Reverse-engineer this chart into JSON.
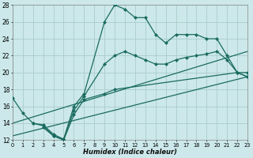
{
  "bg_color": "#cce8ea",
  "grid_color": "#aacccc",
  "line_color": "#1a6b60",
  "xlabel": "Humidex (Indice chaleur)",
  "xlim": [
    0,
    23
  ],
  "ylim": [
    12,
    28
  ],
  "xticks": [
    0,
    1,
    2,
    3,
    4,
    5,
    6,
    7,
    8,
    9,
    10,
    11,
    12,
    13,
    14,
    15,
    16,
    17,
    18,
    19,
    20,
    21,
    22,
    23
  ],
  "yticks": [
    12,
    14,
    16,
    18,
    20,
    22,
    24,
    26,
    28
  ],
  "curve1_x": [
    0,
    1,
    2,
    3,
    4,
    5,
    6,
    7,
    9,
    10,
    11,
    12,
    13,
    14,
    15,
    16,
    17,
    18,
    19,
    20,
    21,
    22,
    23
  ],
  "curve1_y": [
    17.0,
    15.2,
    14.0,
    13.8,
    12.7,
    12.1,
    16.0,
    17.5,
    26.0,
    28.0,
    27.5,
    26.5,
    26.5,
    24.5,
    23.5,
    24.5,
    24.5,
    24.5,
    24.0,
    24.0,
    22.0,
    20.0,
    19.5
  ],
  "curve2_x": [
    2,
    3,
    4,
    5,
    6,
    7,
    9,
    10,
    11,
    12,
    13,
    14,
    15,
    16,
    17,
    18,
    19,
    20,
    21,
    22,
    23
  ],
  "curve2_y": [
    14.0,
    13.7,
    12.5,
    12.1,
    15.5,
    17.2,
    21.0,
    22.0,
    22.5,
    22.0,
    21.5,
    21.0,
    21.0,
    21.5,
    21.8,
    22.0,
    22.2,
    22.5,
    21.5,
    20.0,
    20.0
  ],
  "curve3_x": [
    3,
    4,
    5,
    6,
    7,
    9,
    10,
    22,
    23
  ],
  "curve3_y": [
    13.5,
    12.5,
    12.0,
    15.0,
    16.8,
    17.5,
    18.0,
    20.0,
    19.5
  ],
  "trend1_x": [
    0,
    23
  ],
  "trend1_y": [
    14.0,
    22.5
  ],
  "trend2_x": [
    0,
    23
  ],
  "trend2_y": [
    12.5,
    19.5
  ]
}
